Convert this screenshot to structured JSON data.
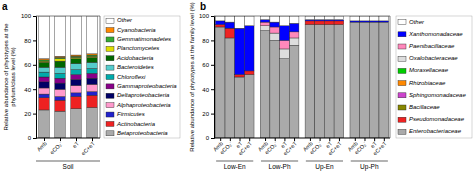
{
  "chart_data": [
    {
      "type": "bar",
      "stacked": true,
      "title": "a",
      "ylabel": "Relative abundance of phytotypes at the\nphylum/class level (%)",
      "categories": [
        "Amb",
        "eCO₂⁻",
        "eT",
        "eC+eT"
      ],
      "annotations": [
        "Soil"
      ],
      "ylim": [
        0,
        100
      ],
      "yticks": [
        0,
        20,
        40,
        60,
        80,
        100
      ],
      "grid": false,
      "legend": "right",
      "series": [
        {
          "name": "Betaproteobacteria",
          "color": "#aaaaaa",
          "values": [
            23,
            22,
            24,
            25
          ]
        },
        {
          "name": "Actinobacteria",
          "color": "#ee2222",
          "values": [
            10,
            9,
            10,
            10
          ]
        },
        {
          "name": "Firmicutes",
          "color": "#2222cc",
          "values": [
            3,
            3,
            3,
            3
          ]
        },
        {
          "name": "Alphaproteobacteria",
          "color": "#ff99cc",
          "values": [
            5,
            6,
            6,
            6
          ]
        },
        {
          "name": "Deltaproteobacteria",
          "color": "#000066",
          "values": [
            5,
            5,
            5,
            5
          ]
        },
        {
          "name": "Gammaproteobacteria",
          "color": "#880088",
          "values": [
            4,
            4,
            4,
            4
          ]
        },
        {
          "name": "Chloroflexi",
          "color": "#00aaaa",
          "values": [
            4,
            4,
            4,
            4
          ]
        },
        {
          "name": "Bacteroidetes",
          "color": "#55cccc",
          "values": [
            4,
            5,
            5,
            5
          ]
        },
        {
          "name": "Acidobacteria",
          "color": "#006600",
          "values": [
            4,
            5,
            4,
            4
          ]
        },
        {
          "name": "Planctomycetes",
          "color": "#dddd00",
          "values": [
            1,
            2,
            1,
            1
          ]
        },
        {
          "name": "Gemmatimonadetes",
          "color": "#33aa33",
          "values": [
            1,
            1,
            1,
            1
          ]
        },
        {
          "name": "Cyanobacteria",
          "color": "#ff8800",
          "values": [
            1,
            1,
            1,
            1
          ]
        },
        {
          "name": "Other",
          "color": "#ffffff",
          "values": [
            35,
            33,
            32,
            31
          ]
        }
      ]
    },
    {
      "type": "bar",
      "stacked": true,
      "title": "b",
      "ylabel": "Relative abundance of phytotypes at the family level (%)",
      "categories": [
        "Amb",
        "eCO₂⁻",
        "eT",
        "eC+eT",
        "Amb",
        "eCO₂⁻",
        "eT",
        "eC+eT",
        "Amb",
        "eCO₂⁻",
        "eT",
        "eC+eT",
        "Amb",
        "eCO₂⁻",
        "eT",
        "eC+eT"
      ],
      "annotations": [
        "Low-En",
        "Low-Ph",
        "Up-En",
        "Up-Ph"
      ],
      "ylim": [
        0,
        100
      ],
      "yticks": [
        0,
        20,
        40,
        60,
        80,
        100
      ],
      "grid": false,
      "legend": "right",
      "series": [
        {
          "name": "Enterobacteriaceae",
          "color": "#aaaaaa",
          "values": [
            91,
            82,
            50,
            52,
            88,
            80,
            65,
            76,
            93,
            93,
            93,
            93,
            95,
            95,
            95,
            95
          ]
        },
        {
          "name": "Pseudomonadaceae",
          "color": "#ee2222",
          "values": [
            2,
            8,
            2,
            3,
            0,
            0,
            0,
            0,
            3,
            3,
            3,
            3,
            0,
            0,
            0,
            0
          ]
        },
        {
          "name": "Bacillaceae",
          "color": "#888800",
          "values": [
            0,
            0,
            0,
            0,
            0,
            0,
            0,
            0,
            0,
            0,
            0,
            0,
            0,
            0,
            0,
            0
          ]
        },
        {
          "name": "Sphingomonadaceae",
          "color": "#cc44cc",
          "values": [
            0,
            0,
            0,
            0,
            0,
            0,
            0,
            0,
            0,
            0,
            0,
            0,
            0,
            0,
            0,
            0
          ]
        },
        {
          "name": "Rhizobiaceae",
          "color": "#ff8800",
          "values": [
            0,
            0,
            0,
            0,
            0,
            0,
            0,
            0,
            0,
            0,
            0,
            0,
            0,
            0,
            0,
            0
          ]
        },
        {
          "name": "Moraxellaceae",
          "color": "#00cc00",
          "values": [
            0,
            0,
            0,
            0,
            0,
            0,
            0,
            0,
            0,
            0,
            0,
            0,
            0,
            0,
            0,
            0
          ]
        },
        {
          "name": "Oxalobacteraceae",
          "color": "#dddddd",
          "values": [
            0,
            0,
            0,
            0,
            4,
            6,
            8,
            6,
            0,
            0,
            0,
            0,
            0,
            0,
            0,
            0
          ]
        },
        {
          "name": "Paenibacillaceae",
          "color": "#ff88bb",
          "values": [
            0,
            0,
            0,
            0,
            3,
            5,
            7,
            5,
            0,
            0,
            0,
            0,
            0,
            0,
            0,
            0
          ]
        },
        {
          "name": "Xanthomonadaceae",
          "color": "#0000ff",
          "values": [
            3,
            5,
            38,
            37,
            2,
            4,
            12,
            7,
            1,
            1,
            1,
            1,
            1,
            1,
            1,
            1
          ]
        },
        {
          "name": "Other",
          "color": "#ffffff",
          "values": [
            4,
            5,
            10,
            8,
            3,
            5,
            8,
            6,
            3,
            3,
            3,
            3,
            4,
            4,
            4,
            4
          ]
        }
      ]
    }
  ]
}
